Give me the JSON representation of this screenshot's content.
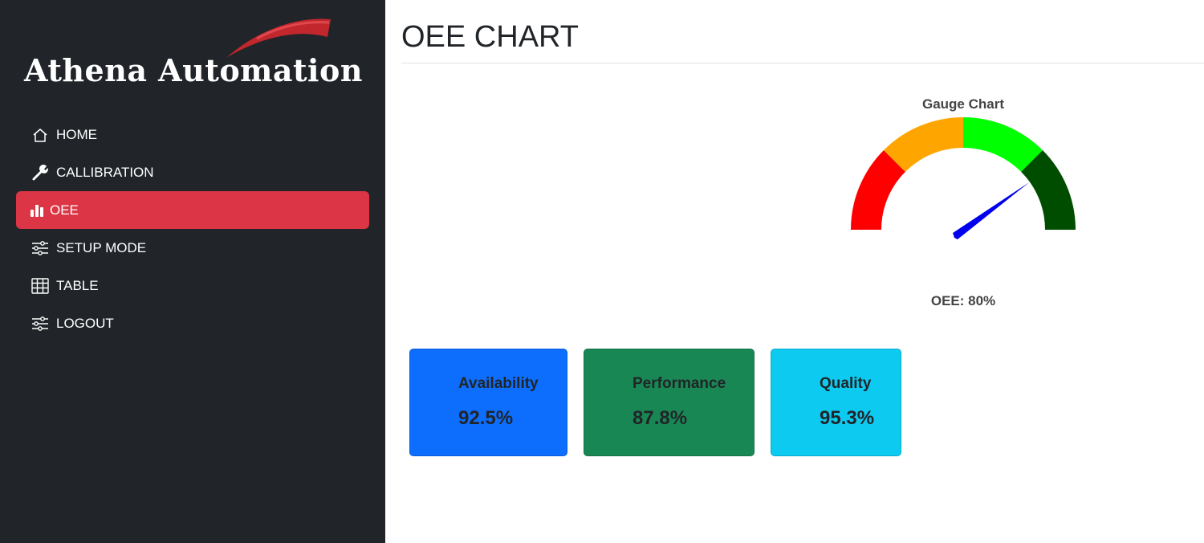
{
  "brand": {
    "name": "Athena Automation",
    "swoosh_color": "#c1272d"
  },
  "sidebar": {
    "items": [
      {
        "label": "HOME",
        "icon": "house-icon"
      },
      {
        "label": "CALLIBRATION",
        "icon": "wrench-icon"
      },
      {
        "label": "OEE",
        "icon": "bar-chart-icon",
        "active": true
      },
      {
        "label": "SETUP MODE",
        "icon": "sliders-icon"
      },
      {
        "label": "TABLE",
        "icon": "table-icon"
      },
      {
        "label": "LOGOUT",
        "icon": "sliders-icon"
      }
    ],
    "active_color": "#dc3545"
  },
  "page": {
    "title": "OEE CHART"
  },
  "gauge": {
    "title": "Gauge Chart",
    "value_text": "OEE: 80%",
    "value": 80,
    "min": 0,
    "max": 100,
    "bands": [
      {
        "from": 0,
        "to": 25,
        "color": "#ff0000"
      },
      {
        "from": 25,
        "to": 50,
        "color": "#ffa500"
      },
      {
        "from": 50,
        "to": 75,
        "color": "#00ff00"
      },
      {
        "from": 75,
        "to": 100,
        "color": "#004d00"
      }
    ],
    "needle_color": "#0000ee"
  },
  "metrics": [
    {
      "label": "Availability",
      "value": "92.5%",
      "color": "#0d6efd"
    },
    {
      "label": "Performance",
      "value": "87.8%",
      "color": "#198754"
    },
    {
      "label": "Quality",
      "value": "95.3%",
      "color": "#0dcaf0"
    }
  ]
}
